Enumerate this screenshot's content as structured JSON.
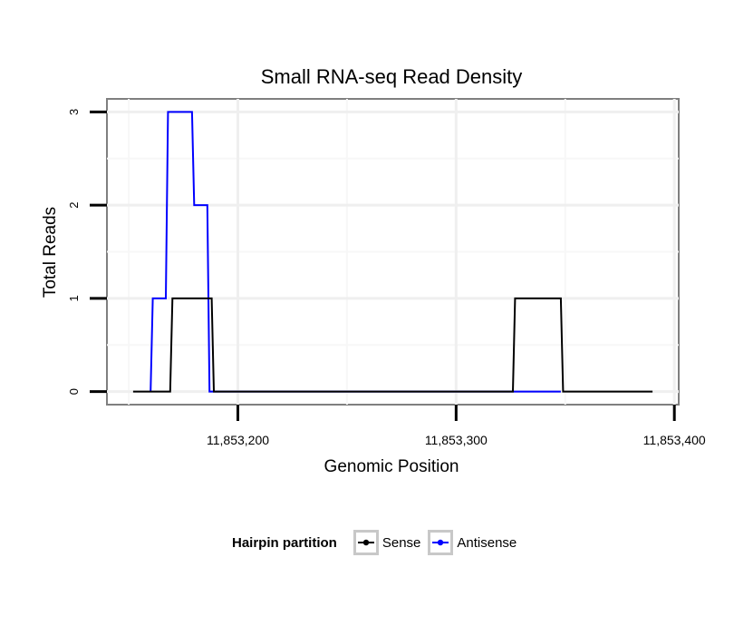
{
  "chart_data": {
    "type": "line",
    "title": "Small RNA-seq Read Density",
    "xlabel": "Genomic Position",
    "ylabel": "Total Reads",
    "xlim": [
      11853140,
      11853402
    ],
    "ylim": [
      -0.14,
      3.14
    ],
    "x_ticks": [
      11853200,
      11853300,
      11853400
    ],
    "x_tick_labels": [
      "11,853,200",
      "11,853,300",
      "11,853,400"
    ],
    "y_ticks": [
      0,
      1,
      2,
      3
    ],
    "y_tick_labels": [
      "0",
      "1",
      "2",
      "3"
    ],
    "grid": true,
    "legend_position": "bottom",
    "legend_title": "Hairpin partition",
    "series": [
      {
        "name": "Sense",
        "color": "#000000",
        "x": [
          11853152,
          11853169,
          11853170,
          11853188,
          11853189,
          11853326,
          11853327,
          11853348,
          11853349,
          11853390
        ],
        "y": [
          0,
          0,
          1,
          1,
          0,
          0,
          1,
          1,
          0,
          0
        ]
      },
      {
        "name": "Antisense",
        "color": "#0000ff",
        "x": [
          11853160,
          11853161,
          11853167,
          11853168,
          11853179,
          11853180,
          11853186,
          11853187,
          11853200,
          11853326,
          11853348
        ],
        "y": [
          0,
          1,
          1,
          3,
          3,
          2,
          2,
          0,
          0,
          0,
          0
        ]
      }
    ]
  }
}
